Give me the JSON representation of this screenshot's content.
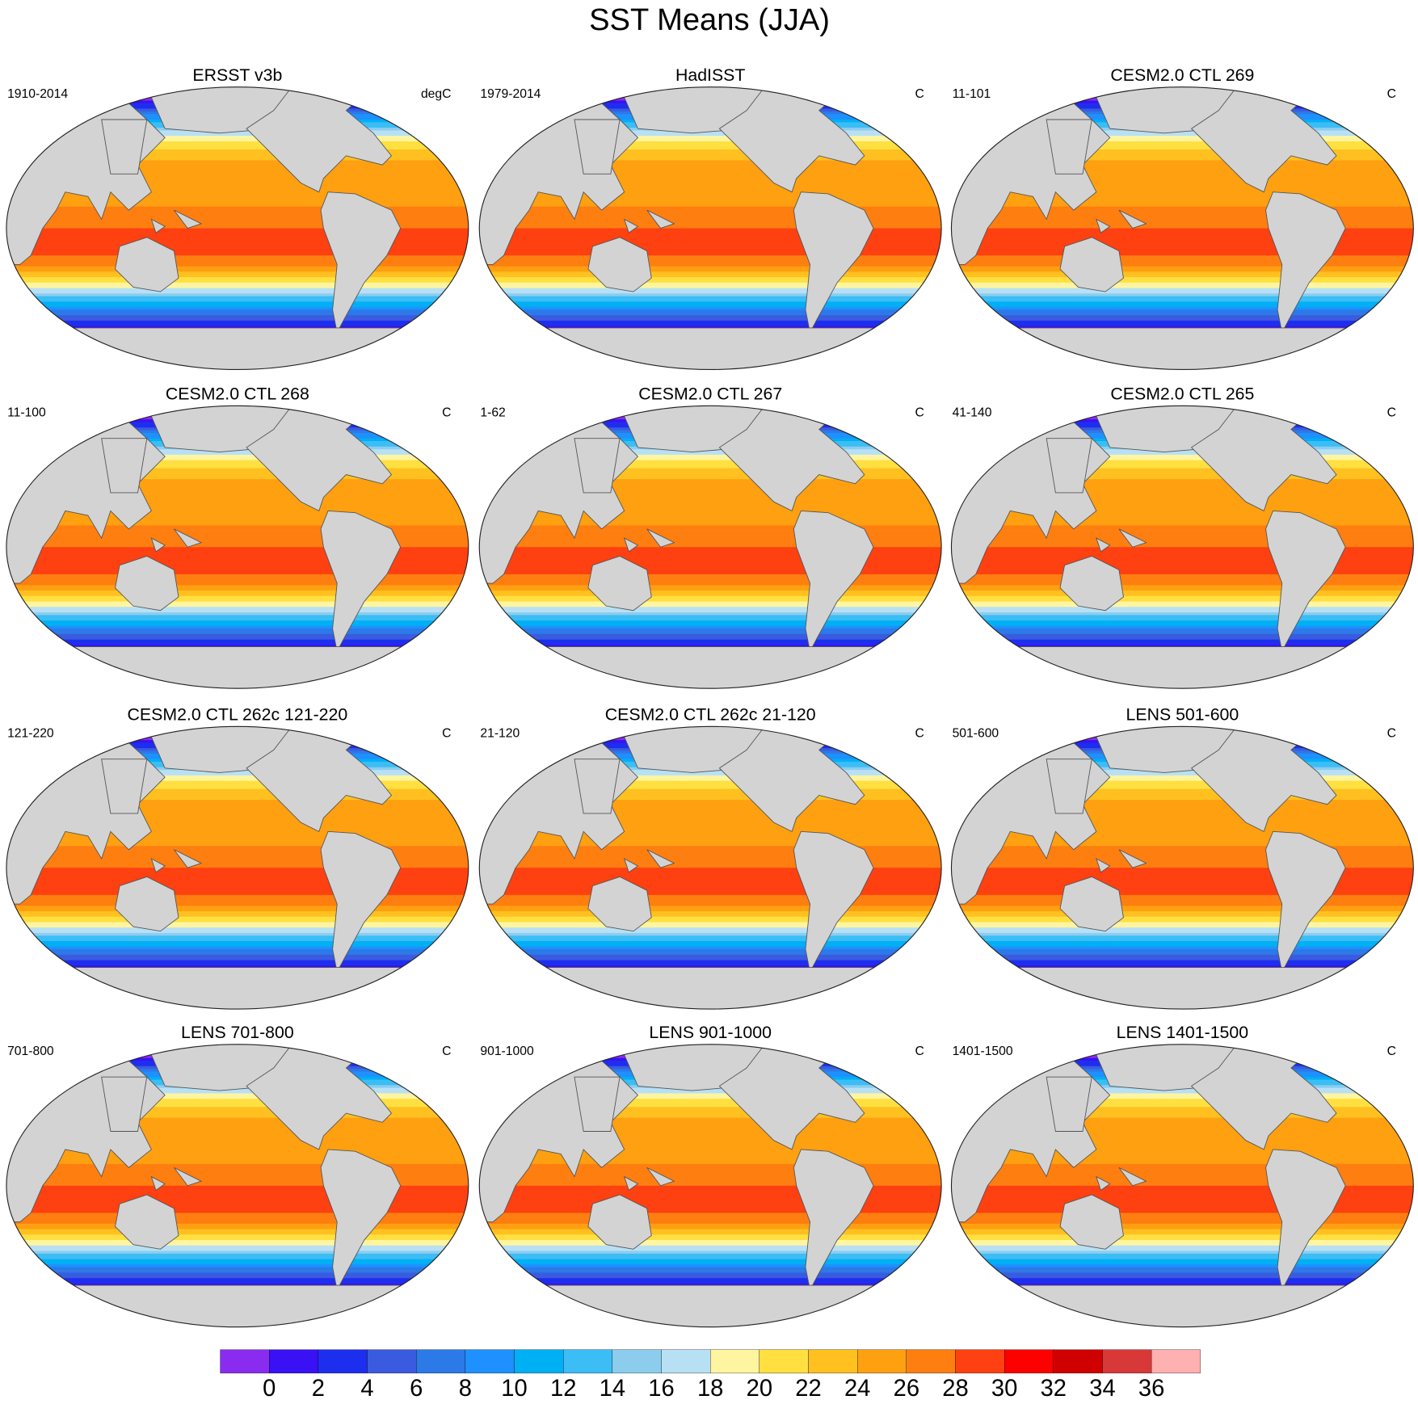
{
  "title": "SST Means (JJA)",
  "panels": [
    {
      "title": "ERSST v3b",
      "left": "1910-2014",
      "right": "degC"
    },
    {
      "title": "HadISST",
      "left": "1979-2014",
      "right": "C"
    },
    {
      "title": "CESM2.0 CTL 269",
      "left": "11-101",
      "right": "C"
    },
    {
      "title": "CESM2.0 CTL 268",
      "left": "11-100",
      "right": "C"
    },
    {
      "title": "CESM2.0 CTL 267",
      "left": "1-62",
      "right": "C"
    },
    {
      "title": "CESM2.0 CTL 265",
      "left": "41-140",
      "right": "C"
    },
    {
      "title": "CESM2.0 CTL 262c 121-220",
      "left": "121-220",
      "right": "C"
    },
    {
      "title": "CESM2.0 CTL 262c 21-120",
      "left": "21-120",
      "right": "C"
    },
    {
      "title": "LENS 501-600",
      "left": "501-600",
      "right": "C"
    },
    {
      "title": "LENS 701-800",
      "left": "701-800",
      "right": "C"
    },
    {
      "title": "LENS 901-1000",
      "left": "901-1000",
      "right": "C"
    },
    {
      "title": "LENS 1401-1500",
      "left": "1401-1500",
      "right": "C"
    }
  ],
  "colorbar": {
    "colors": [
      "#8a2cf0",
      "#3a10f5",
      "#1e2eef",
      "#3a5bdf",
      "#2c79e8",
      "#1e90ff",
      "#00b0f5",
      "#3cbdf5",
      "#8ccdee",
      "#b8e0f5",
      "#fff5a0",
      "#ffe040",
      "#ffc020",
      "#ffa010",
      "#ff7e10",
      "#ff4010",
      "#ff0000",
      "#d00000",
      "#d83838",
      "#ffb0b0"
    ],
    "ticks": [
      0,
      2,
      4,
      6,
      8,
      10,
      12,
      14,
      16,
      18,
      20,
      22,
      24,
      26,
      28,
      30,
      32,
      34,
      36
    ]
  }
}
